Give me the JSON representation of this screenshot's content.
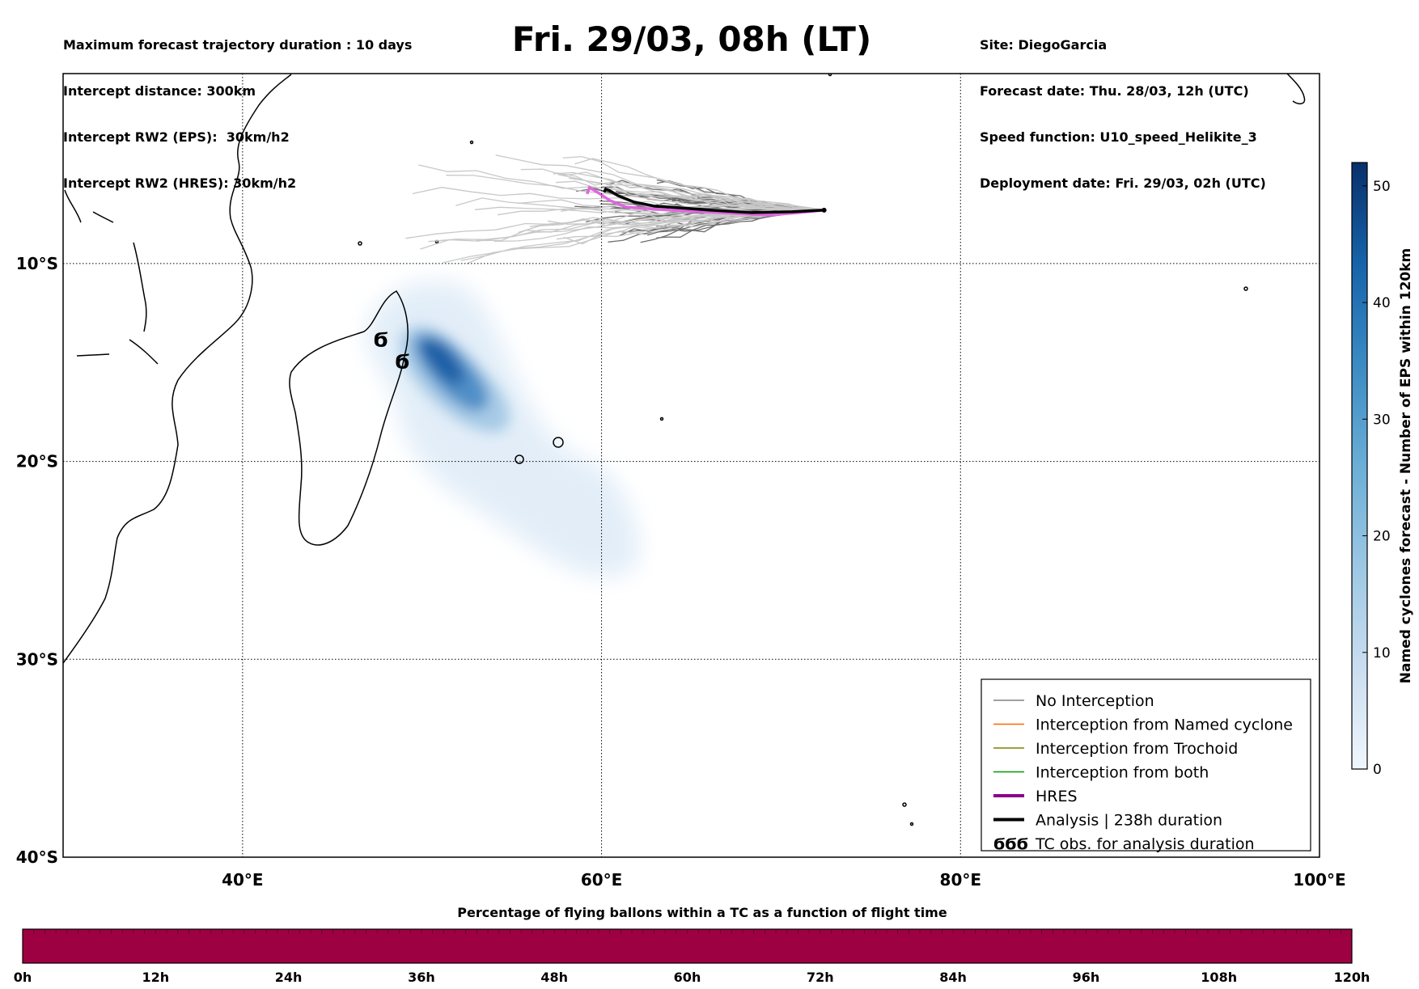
{
  "header": {
    "left_lines": [
      "Maximum forecast trajectory duration : 10 days",
      "Intercept distance: 300km",
      "Intercept RW2 (EPS):  30km/h2",
      "Intercept RW2 (HRES): 30km/h2"
    ],
    "right_lines": [
      "Site: DiegoGarcia",
      "Forecast date: Thu. 28/03, 12h (UTC)",
      "Speed function: U10_speed_Helikite_3",
      "Deployment date: Fri. 29/03, 02h (UTC)"
    ],
    "title": "Fri. 29/03, 08h (LT)"
  },
  "map": {
    "lon_range": [
      30,
      100
    ],
    "lat_range": [
      -40,
      -0.4
    ],
    "lon_ticks": [
      {
        "value": 40,
        "label": "40°E"
      },
      {
        "value": 60,
        "label": "60°E"
      },
      {
        "value": 80,
        "label": "80°E"
      },
      {
        "value": 100,
        "label": "100°E"
      }
    ],
    "lat_ticks": [
      {
        "value": -10,
        "label": "10°S"
      },
      {
        "value": -20,
        "label": "20°S"
      },
      {
        "value": -30,
        "label": "30°S"
      },
      {
        "value": -40,
        "label": "40°S"
      }
    ],
    "grid_style": "dotted",
    "launch_site": {
      "lon": 72.4,
      "lat": -7.3
    },
    "tc_obs_symbols": [
      {
        "lon": 47.7,
        "lat": -14.2
      },
      {
        "lon": 48.9,
        "lat": -15.3
      }
    ]
  },
  "legend": {
    "placement": "bottom-right",
    "items": [
      {
        "label": "No Interception",
        "color": "#808080",
        "style": "thin-line"
      },
      {
        "label": "Interception from Named cyclone",
        "color": "#ff6600",
        "style": "thin-line"
      },
      {
        "label": "Interception from Trochoid",
        "color": "#808000",
        "style": "thin-line"
      },
      {
        "label": "Interception from both",
        "color": "#009900",
        "style": "thin-line"
      },
      {
        "label": "HRES",
        "color": "#8b008b",
        "style": "thick-line"
      },
      {
        "label": "Analysis | 238h duration",
        "color": "#000000",
        "style": "thick-line"
      },
      {
        "label": "TC obs. for analysis duration",
        "color": "#000000",
        "style": "tc-symbol",
        "symbol": "ϬϬϬ"
      }
    ]
  },
  "colorbar": {
    "label": "Named cyclones forecast - Number of EPS within 120km",
    "range": [
      0,
      52
    ],
    "ticks": [
      "0",
      "10",
      "20",
      "30",
      "40",
      "50"
    ],
    "colors": [
      "#f0f6fd",
      "#c9ddf0",
      "#9dc8e4",
      "#6baed6",
      "#3a8ac3",
      "#1764ab",
      "#08306b"
    ]
  },
  "bottom_bar": {
    "title": "Percentage of flying ballons within a TC as a function of flight time",
    "color": "#9e0142",
    "ticks": [
      "0h",
      "12h",
      "24h",
      "36h",
      "48h",
      "60h",
      "72h",
      "84h",
      "96h",
      "108h",
      "120h"
    ]
  }
}
